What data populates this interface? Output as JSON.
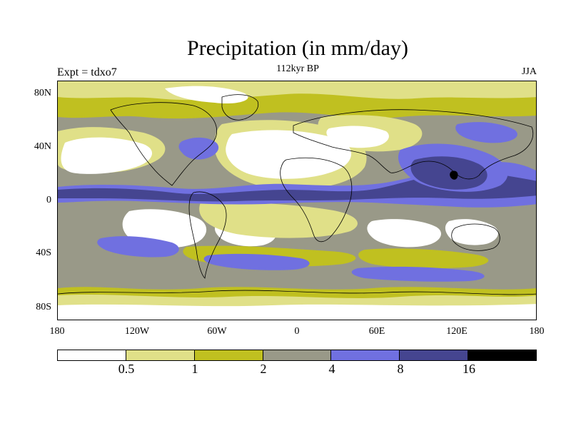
{
  "title": "Precipitation (in mm/day)",
  "subtitle": "112kyr BP",
  "experiment_label": "Expt = tdxo7",
  "season_label": "JJA",
  "y_axis_labels": [
    "80N",
    "40N",
    "0",
    "40S",
    "80S"
  ],
  "x_axis_labels": [
    "180",
    "120W",
    "60W",
    "0",
    "60E",
    "120E",
    "180"
  ],
  "colorbar": {
    "colors": [
      "#ffffff",
      "#e0e088",
      "#c0c020",
      "#999988",
      "#7070e0",
      "#454590",
      "#000000"
    ],
    "labels": [
      "0.5",
      "1",
      "2",
      "4",
      "8",
      "16"
    ]
  },
  "map_colors": {
    "lt05": "#ffffff",
    "b05_1": "#e0e088",
    "b1_2": "#c0c020",
    "b2_4": "#999988",
    "b4_8": "#7070e0",
    "b8_16": "#454590",
    "gt16": "#000000"
  }
}
